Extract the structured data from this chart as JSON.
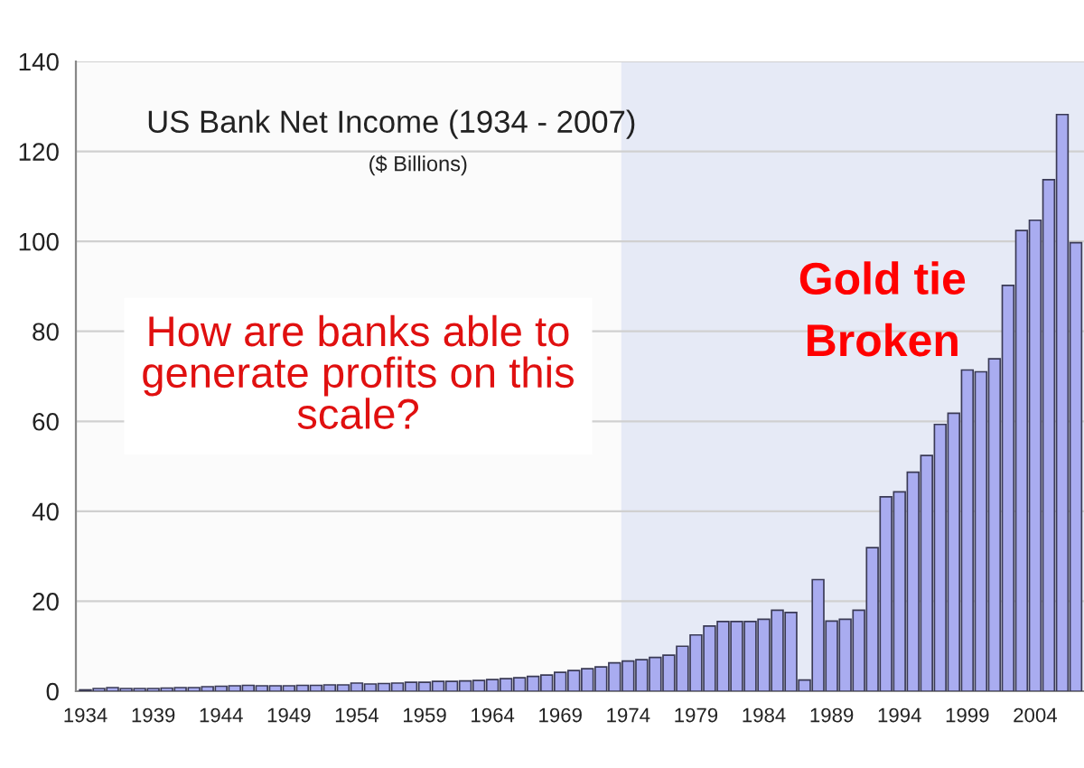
{
  "chart_data": {
    "type": "bar",
    "title": "US Bank Net Income (1934 - 2007)",
    "subtitle": "($ Billions)",
    "x": [
      1934,
      1935,
      1936,
      1937,
      1938,
      1939,
      1940,
      1941,
      1942,
      1943,
      1944,
      1945,
      1946,
      1947,
      1948,
      1949,
      1950,
      1951,
      1952,
      1953,
      1954,
      1955,
      1956,
      1957,
      1958,
      1959,
      1960,
      1961,
      1962,
      1963,
      1964,
      1965,
      1966,
      1967,
      1968,
      1969,
      1970,
      1971,
      1972,
      1973,
      1974,
      1975,
      1976,
      1977,
      1978,
      1979,
      1980,
      1981,
      1982,
      1983,
      1984,
      1985,
      1986,
      1987,
      1988,
      1989,
      1990,
      1991,
      1992,
      1993,
      1994,
      1995,
      1996,
      1997,
      1998,
      1999,
      2000,
      2001,
      2002,
      2003,
      2004,
      2005,
      2006,
      2007
    ],
    "values": [
      0.3,
      0.6,
      0.8,
      0.6,
      0.6,
      0.6,
      0.7,
      0.8,
      0.8,
      1.0,
      1.1,
      1.2,
      1.3,
      1.2,
      1.2,
      1.2,
      1.3,
      1.3,
      1.4,
      1.4,
      1.8,
      1.6,
      1.7,
      1.8,
      2.0,
      2.0,
      2.2,
      2.2,
      2.3,
      2.4,
      2.6,
      2.8,
      3.0,
      3.3,
      3.6,
      4.2,
      4.6,
      5.0,
      5.4,
      6.3,
      6.7,
      7.0,
      7.5,
      8.0,
      10.0,
      12.5,
      14.5,
      15.5,
      15.5,
      15.5,
      16.0,
      18.0,
      17.5,
      2.5,
      24.8,
      15.6,
      16.0,
      18.0,
      31.9,
      43.2,
      44.3,
      48.7,
      52.4,
      59.3,
      61.8,
      71.4,
      71.0,
      73.9,
      90.2,
      102.4,
      104.7,
      113.7,
      128.2,
      99.7
    ],
    "color": "#a9acf0",
    "xlim": [
      1933.3,
      2007.6
    ],
    "xticks": [
      1934,
      1939,
      1944,
      1949,
      1954,
      1959,
      1964,
      1969,
      1974,
      1979,
      1984,
      1989,
      1994,
      1999,
      2004
    ],
    "ylim": [
      0,
      140
    ],
    "yticks": [
      0,
      20,
      40,
      60,
      80,
      100,
      120,
      140
    ],
    "grid": "y",
    "bands": [
      {
        "axis": "x",
        "from": 1973.5,
        "to": 2007.6,
        "color": "#e6eaf6"
      }
    ],
    "annotations": [
      "How are banks able to generate profits on this scale?",
      "Gold tie Broken"
    ]
  }
}
